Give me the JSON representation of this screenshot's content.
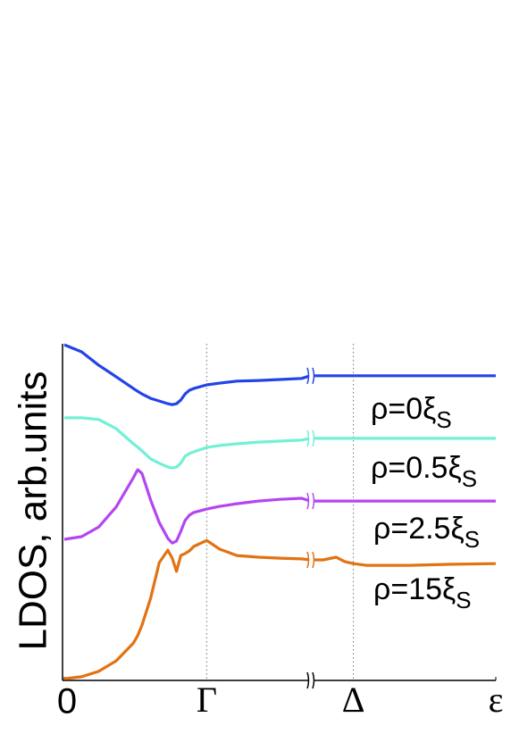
{
  "chart_data": {
    "type": "line",
    "y_label": "LDOS, arb.units",
    "x": [
      0,
      4,
      8,
      12,
      16,
      17,
      18,
      20,
      22,
      24,
      25,
      26,
      27,
      28,
      29,
      30,
      33,
      36,
      40,
      45,
      50,
      55,
      57,
      60,
      63,
      65,
      67,
      70,
      75,
      80,
      90,
      100
    ],
    "xlim": [
      0,
      100
    ],
    "xticks": [
      0,
      {
        "value": 33,
        "label": "Γ"
      },
      {
        "value": 67,
        "label": "Δ"
      },
      {
        "value": 100,
        "label": "ε"
      }
    ],
    "ylim": [
      0,
      100
    ],
    "series": [
      {
        "name": "ρ=0ξ",
        "name_subscript": "S",
        "color": "#2443e6",
        "values": [
          99.7,
          97.6,
          93.6,
          90.2,
          86.7,
          85.9,
          85.1,
          83.8,
          83.0,
          82.2,
          81.9,
          82.2,
          83.3,
          85.1,
          86.2,
          86.7,
          87.8,
          88.3,
          88.9,
          89.1,
          89.4,
          89.7,
          90.5,
          90.5,
          90.5,
          90.5,
          90.5,
          90.5,
          90.5,
          90.5,
          90.5,
          90.5
        ]
      },
      {
        "name": "ρ=0.5ξ",
        "name_subscript": "S",
        "color": "#72f0d6",
        "values": [
          78.0,
          78.0,
          77.5,
          74.8,
          70.3,
          69.3,
          68.2,
          65.8,
          64.5,
          63.4,
          63.1,
          63.4,
          64.5,
          66.6,
          67.4,
          67.9,
          69.2,
          69.8,
          70.3,
          70.8,
          71.1,
          71.4,
          71.9,
          71.9,
          71.9,
          71.9,
          71.9,
          71.9,
          71.9,
          71.9,
          71.9,
          71.9
        ]
      },
      {
        "name": "ρ=2.5ξ",
        "name_subscript": "S",
        "color": "#b445f2",
        "values": [
          41.9,
          42.7,
          45.6,
          51.5,
          60.2,
          62.6,
          61.5,
          53.6,
          46.9,
          42.2,
          40.8,
          41.4,
          44.3,
          47.5,
          49.1,
          49.9,
          50.9,
          51.7,
          52.5,
          53.3,
          53.8,
          54.1,
          53.3,
          53.3,
          53.3,
          53.3,
          53.3,
          53.3,
          53.3,
          53.3,
          53.3,
          53.3
        ]
      },
      {
        "name": "ρ=15ξ",
        "name_subscript": "S",
        "color": "#e27212",
        "values": [
          0.5,
          1.1,
          2.7,
          5.8,
          11.1,
          13.3,
          16.4,
          24.4,
          35.0,
          38.7,
          36.3,
          32.4,
          37.1,
          37.7,
          38.5,
          39.8,
          41.6,
          39.0,
          37.1,
          36.6,
          36.3,
          36.1,
          35.8,
          35.8,
          36.6,
          35.3,
          34.7,
          34.2,
          34.2,
          34.2,
          34.5,
          34.7
        ]
      }
    ]
  }
}
